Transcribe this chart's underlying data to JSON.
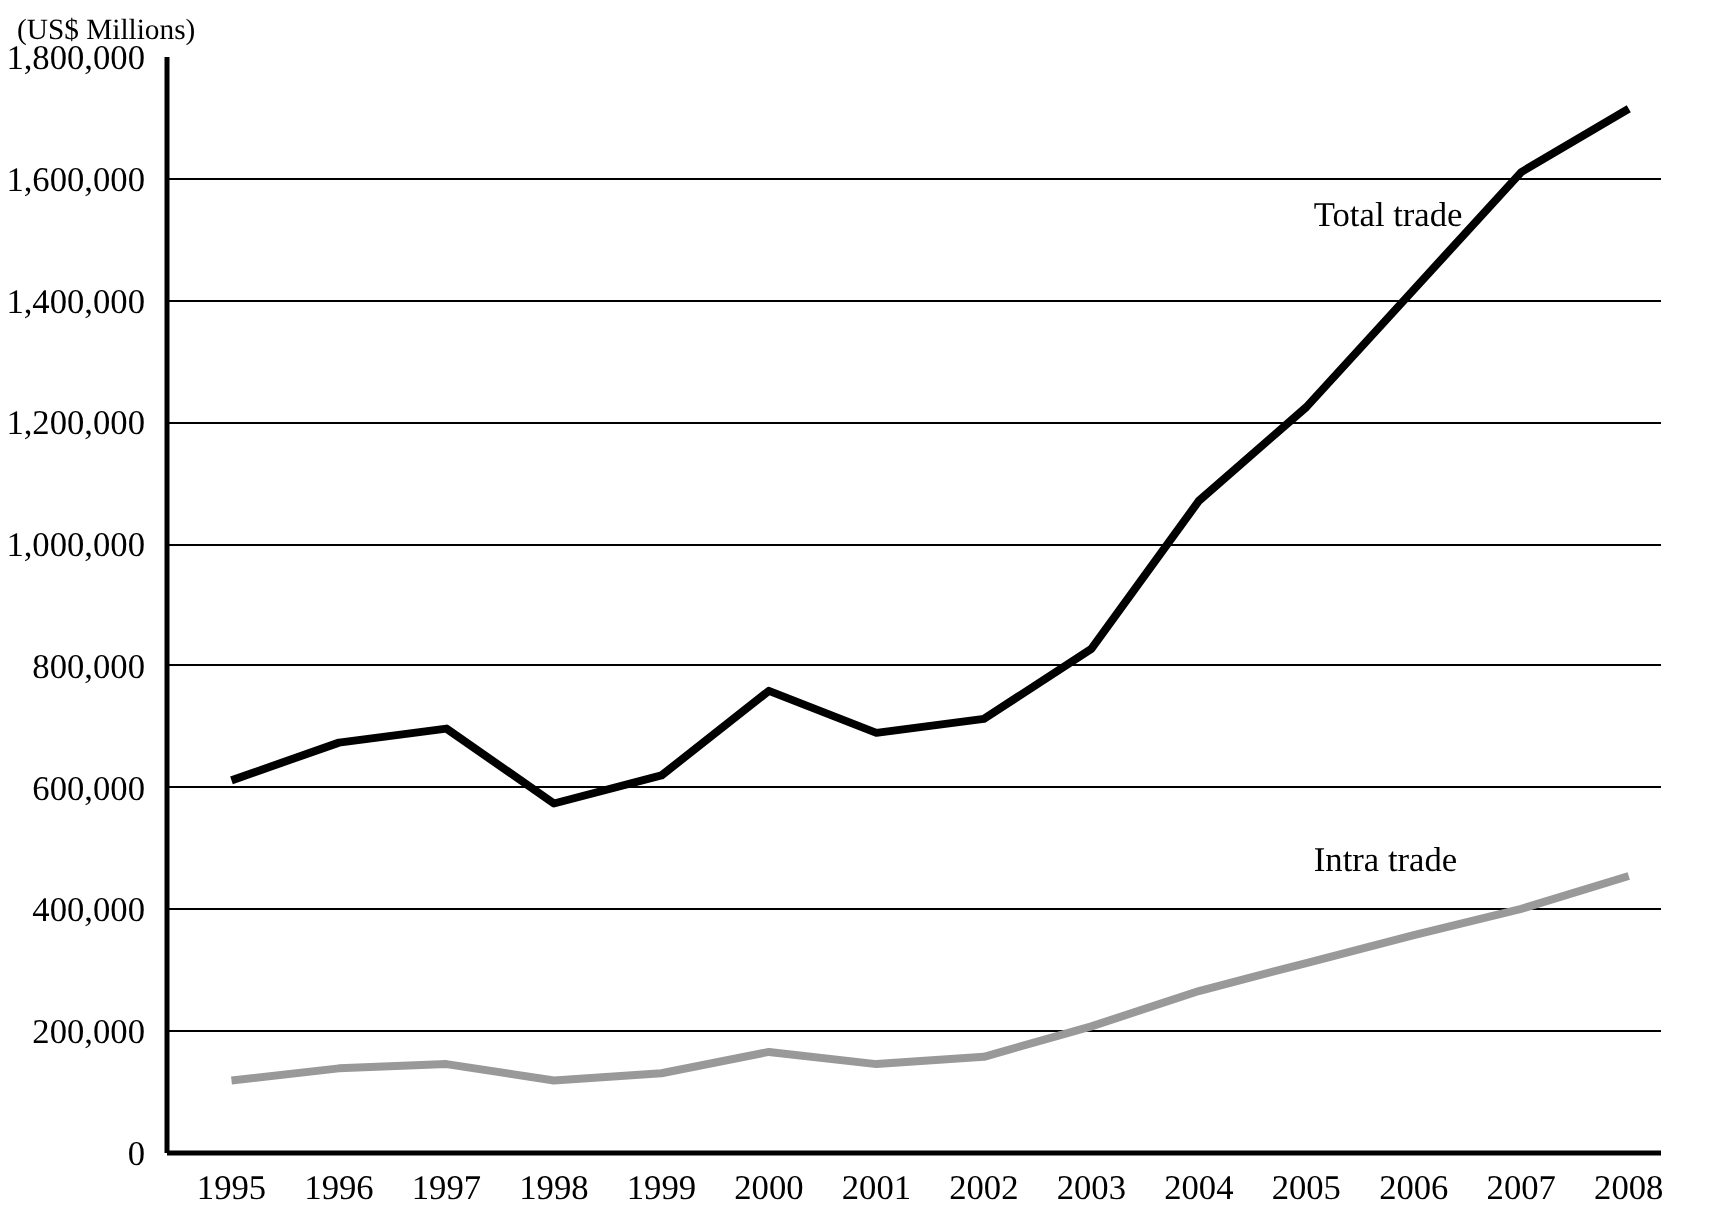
{
  "chart_data": {
    "type": "line",
    "ylabel": "(US$ Millions)",
    "categories": [
      "1995",
      "1996",
      "1997",
      "1998",
      "1999",
      "2000",
      "2001",
      "2002",
      "2003",
      "2004",
      "2005",
      "2006",
      "2007",
      "2008"
    ],
    "ylim": [
      0,
      1800000
    ],
    "yticks": [
      {
        "value": 0,
        "label": "0"
      },
      {
        "value": 200000,
        "label": "200,000"
      },
      {
        "value": 400000,
        "label": "400,000"
      },
      {
        "value": 600000,
        "label": "600,000"
      },
      {
        "value": 800000,
        "label": "800,000"
      },
      {
        "value": 1000000,
        "label": "1,000,000"
      },
      {
        "value": 1200000,
        "label": "1,200,000"
      },
      {
        "value": 1400000,
        "label": "1,400,000"
      },
      {
        "value": 1600000,
        "label": "1,600,000"
      },
      {
        "value": 1800000,
        "label": "1,800,000"
      }
    ],
    "grid": "y",
    "marker": "none",
    "line_style": "solid",
    "series": [
      {
        "name": "Total trade",
        "color": "#000000",
        "values": [
          612000,
          674000,
          697000,
          574000,
          620000,
          759000,
          690000,
          713000,
          828000,
          1071000,
          1225000,
          1418000,
          1611000,
          1715000
        ]
      },
      {
        "name": "Intra trade",
        "color": "#999999",
        "values": [
          119000,
          139000,
          146000,
          119000,
          131000,
          166000,
          146000,
          158000,
          208000,
          266000,
          312000,
          358000,
          401000,
          455000
        ]
      }
    ]
  }
}
